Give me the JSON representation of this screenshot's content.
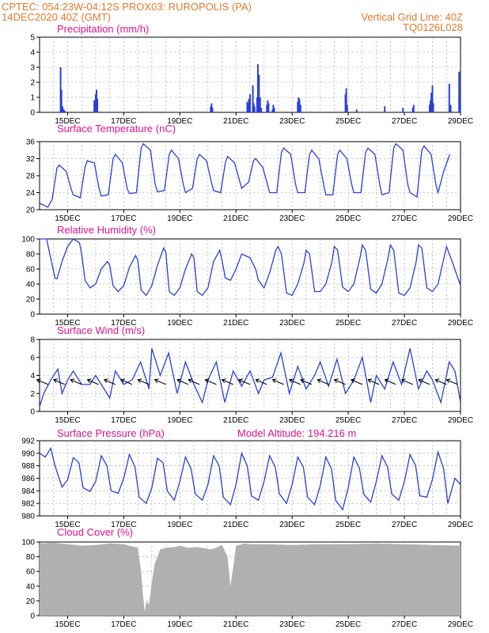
{
  "header": {
    "line1_left": "CPTEC:   054:23W-04:12S   PROX03: RUROPOLIS (PA)",
    "line2_left": "14DEC2020  40Z (GMT)",
    "line2_right": "Vertical Grid Line: 40Z",
    "line3_right": "TQ0126L028"
  },
  "colors": {
    "header": "#e8782a",
    "title": "#e0138c",
    "series": "#2b3fd8",
    "cloud": "#b0b0b0",
    "grid": "#9a9a9a"
  },
  "x_ticks": [
    "15DEC",
    "17DEC",
    "19DEC",
    "21DEC",
    "23DEC",
    "25DEC",
    "27DEC",
    "29DEC"
  ],
  "chart_data": [
    {
      "type": "bar",
      "title": "Precipitation (mm/h)",
      "ylim": [
        0,
        5
      ],
      "yticks": [
        0,
        1,
        2,
        3,
        4,
        5
      ],
      "x_unit": "days since 14DEC2020",
      "x": [
        0.75,
        0.78,
        0.82,
        0.86,
        0.9,
        1.95,
        2.0,
        2.03,
        2.06,
        6.1,
        6.13,
        6.16,
        7.4,
        7.43,
        7.46,
        7.5,
        7.6,
        7.63,
        7.66,
        7.75,
        7.78,
        7.82,
        7.86,
        7.9,
        8.1,
        8.13,
        8.16,
        8.3,
        8.33,
        8.36,
        9.2,
        9.23,
        9.26,
        9.3,
        10.9,
        10.93,
        10.96,
        11.3,
        12.3,
        12.95,
        13.3,
        13.33,
        13.9,
        13.93,
        13.96,
        14.0,
        14.03,
        14.6,
        14.65,
        14.95,
        14.99
      ],
      "values": [
        3.0,
        1.5,
        0.4,
        0.2,
        0.1,
        0.8,
        1.2,
        1.5,
        0.9,
        0.4,
        0.6,
        0.3,
        0.7,
        0.5,
        0.9,
        1.2,
        1.8,
        0.6,
        0.4,
        1.0,
        3.2,
        2.5,
        1.0,
        0.3,
        0.5,
        0.8,
        0.6,
        0.2,
        0.5,
        0.3,
        0.7,
        1.0,
        0.9,
        0.5,
        1.2,
        1.6,
        0.5,
        0.2,
        0.4,
        0.3,
        0.3,
        0.5,
        0.5,
        0.8,
        1.3,
        1.8,
        0.6,
        1.9,
        0.5,
        2.7,
        1.0
      ]
    },
    {
      "type": "line",
      "title": "Surface Temperature (nC)",
      "ylim": [
        20,
        36
      ],
      "yticks": [
        20,
        24,
        28,
        32,
        36
      ],
      "x_unit": "days since 14DEC2020",
      "x": [
        0,
        0.3,
        0.45,
        0.62,
        0.7,
        0.95,
        1.12,
        1.2,
        1.45,
        1.62,
        1.7,
        1.95,
        2.12,
        2.2,
        2.45,
        2.62,
        2.7,
        2.95,
        3.12,
        3.2,
        3.45,
        3.62,
        3.7,
        3.95,
        4.12,
        4.2,
        4.45,
        4.62,
        4.7,
        4.95,
        5.12,
        5.2,
        5.45,
        5.62,
        5.7,
        5.95,
        6.12,
        6.2,
        6.45,
        6.62,
        6.7,
        6.95,
        7.12,
        7.2,
        7.45,
        7.62,
        7.7,
        7.95,
        8.12,
        8.2,
        8.45,
        8.62,
        8.7,
        8.95,
        9.12,
        9.2,
        9.45,
        9.62,
        9.7,
        9.95,
        10.12,
        10.2,
        10.45,
        10.62,
        10.7,
        10.95,
        11.12,
        11.2,
        11.45,
        11.62,
        11.7,
        11.95,
        12.12,
        12.2,
        12.45,
        12.62,
        12.7,
        12.95,
        13.12,
        13.2,
        13.45,
        13.62,
        13.7,
        13.95,
        14.12,
        14.2,
        14.4,
        14.62
      ],
      "values": [
        21.5,
        20.6,
        22.5,
        29.8,
        30.5,
        29.0,
        25.0,
        23.5,
        22.8,
        30.0,
        31.5,
        31.0,
        25.0,
        23.2,
        23.5,
        32.0,
        33.0,
        31.0,
        25.0,
        23.8,
        24.0,
        34.5,
        35.5,
        34.0,
        26.0,
        24.2,
        24.5,
        33.0,
        34.0,
        32.0,
        26.0,
        24.0,
        25.0,
        32.0,
        33.0,
        31.5,
        26.5,
        24.5,
        24.0,
        31.0,
        32.5,
        31.0,
        27.0,
        25.0,
        26.5,
        31.5,
        32.0,
        30.0,
        26.0,
        24.0,
        24.0,
        33.5,
        34.5,
        33.0,
        26.0,
        24.0,
        24.0,
        33.0,
        34.0,
        32.0,
        26.0,
        23.5,
        23.5,
        33.0,
        34.0,
        32.0,
        26.0,
        24.0,
        24.0,
        33.5,
        34.5,
        33.0,
        26.0,
        23.5,
        24.0,
        34.5,
        35.5,
        34.0,
        26.0,
        24.0,
        23.0,
        34.0,
        35.0,
        33.0,
        26.0,
        24.0,
        29.0,
        33.0
      ]
    },
    {
      "type": "line",
      "title": "Relative Humidity (%)",
      "ylim": [
        0,
        100
      ],
      "yticks": [
        0,
        20,
        40,
        60,
        80,
        100
      ],
      "x_unit": "days since 14DEC2020",
      "x": [
        0,
        0.25,
        0.55,
        0.62,
        0.8,
        1.0,
        1.2,
        1.42,
        1.5,
        1.62,
        1.8,
        2.0,
        2.2,
        2.42,
        2.5,
        2.62,
        2.8,
        3.0,
        3.2,
        3.42,
        3.5,
        3.62,
        3.8,
        4.0,
        4.2,
        4.42,
        4.5,
        4.62,
        4.8,
        5.0,
        5.2,
        5.42,
        5.5,
        5.62,
        5.8,
        6.0,
        6.2,
        6.42,
        6.5,
        6.62,
        6.8,
        7.0,
        7.2,
        7.5,
        7.7,
        7.8,
        8.0,
        8.2,
        8.42,
        8.5,
        8.62,
        8.8,
        9.0,
        9.2,
        9.42,
        9.5,
        9.62,
        9.8,
        10.0,
        10.2,
        10.42,
        10.5,
        10.62,
        10.8,
        11.0,
        11.2,
        11.42,
        11.5,
        11.62,
        11.8,
        12.0,
        12.2,
        12.42,
        12.5,
        12.62,
        12.8,
        13.0,
        13.2,
        13.42,
        13.5,
        13.62,
        13.8,
        14.0,
        14.2,
        14.5,
        14.7,
        15.0
      ],
      "values": [
        100,
        100,
        48,
        47,
        70,
        90,
        100,
        95,
        80,
        45,
        35,
        40,
        60,
        70,
        65,
        38,
        30,
        38,
        62,
        78,
        72,
        32,
        25,
        38,
        65,
        88,
        82,
        30,
        25,
        35,
        60,
        80,
        75,
        30,
        25,
        35,
        70,
        85,
        72,
        48,
        45,
        60,
        80,
        75,
        60,
        45,
        35,
        55,
        85,
        90,
        80,
        28,
        25,
        40,
        68,
        85,
        80,
        30,
        30,
        40,
        70,
        90,
        85,
        36,
        30,
        40,
        75,
        92,
        85,
        33,
        28,
        40,
        75,
        92,
        85,
        28,
        25,
        35,
        70,
        92,
        88,
        35,
        30,
        40,
        90,
        70,
        38
      ]
    },
    {
      "type": "line",
      "title": "Surface Wind (m/s)",
      "ylim": [
        0,
        8
      ],
      "yticks": [
        0,
        2,
        4,
        6,
        8
      ],
      "x_unit": "days since 14DEC2020",
      "x": [
        0,
        0.15,
        0.4,
        0.65,
        0.8,
        1.0,
        1.2,
        1.5,
        1.8,
        2.0,
        2.3,
        2.5,
        2.7,
        3.0,
        3.3,
        3.6,
        3.9,
        4.0,
        4.3,
        4.6,
        4.9,
        5.2,
        5.5,
        5.8,
        6.0,
        6.3,
        6.6,
        6.9,
        7.2,
        7.5,
        7.8,
        8.0,
        8.3,
        8.6,
        8.9,
        9.2,
        9.5,
        9.8,
        10.0,
        10.3,
        10.6,
        10.9,
        11.2,
        11.5,
        11.8,
        12.0,
        12.3,
        12.6,
        12.9,
        13.2,
        13.5,
        13.8,
        14.0,
        14.3,
        14.6,
        14.8,
        15.0
      ],
      "values": [
        0.5,
        2.0,
        3.5,
        4.7,
        2.0,
        3.5,
        4.5,
        3.0,
        3.0,
        4.0,
        2.5,
        1.5,
        4.5,
        3.0,
        3.5,
        5.5,
        2.5,
        7.0,
        4.0,
        6.5,
        2.0,
        5.5,
        3.0,
        1.0,
        3.5,
        5.5,
        1.0,
        4.5,
        2.8,
        4.5,
        2.0,
        3.5,
        3.8,
        6.5,
        2.0,
        5.0,
        2.5,
        4.0,
        5.5,
        2.8,
        5.8,
        2.0,
        3.5,
        6.0,
        1.0,
        4.0,
        2.5,
        5.5,
        3.0,
        7.0,
        2.5,
        4.5,
        3.5,
        1.0,
        5.5,
        4.5,
        1.0
      ]
    },
    {
      "type": "line",
      "title": "Surface Pressure (hPa)",
      "subtitle": "Model Altitude: 194.216  m",
      "ylim": [
        980,
        992
      ],
      "yticks": [
        980,
        982,
        984,
        986,
        988,
        990,
        992
      ],
      "x_unit": "days since 14DEC2020",
      "x": [
        0,
        0.2,
        0.4,
        0.55,
        0.8,
        1.0,
        1.2,
        1.4,
        1.55,
        1.8,
        2.0,
        2.2,
        2.4,
        2.55,
        2.8,
        3.0,
        3.2,
        3.4,
        3.55,
        3.8,
        4.0,
        4.2,
        4.4,
        4.55,
        4.8,
        5.0,
        5.2,
        5.4,
        5.55,
        5.8,
        6.0,
        6.2,
        6.4,
        6.55,
        6.8,
        7.0,
        7.2,
        7.4,
        7.55,
        7.8,
        8.0,
        8.2,
        8.4,
        8.55,
        8.8,
        9.0,
        9.2,
        9.4,
        9.55,
        9.8,
        10.0,
        10.2,
        10.4,
        10.55,
        10.8,
        11.0,
        11.2,
        11.4,
        11.55,
        11.8,
        12.0,
        12.2,
        12.4,
        12.55,
        12.8,
        13.0,
        13.2,
        13.4,
        13.55,
        13.8,
        14.0,
        14.2,
        14.4,
        14.55,
        14.8,
        15.0
      ],
      "values": [
        990.0,
        989.4,
        990.8,
        988.0,
        984.6,
        985.8,
        989.3,
        988.5,
        984.5,
        983.9,
        985.5,
        989.6,
        988.0,
        984.0,
        983.6,
        986.0,
        989.8,
        987.8,
        983.0,
        982.0,
        984.5,
        989.2,
        988.5,
        984.0,
        982.5,
        985.5,
        989.4,
        987.5,
        983.5,
        982.5,
        985.0,
        989.6,
        988.0,
        983.0,
        981.8,
        985.0,
        990.0,
        988.0,
        983.2,
        982.5,
        985.5,
        989.6,
        987.8,
        983.5,
        982.0,
        985.0,
        989.4,
        987.8,
        983.0,
        981.8,
        984.8,
        989.4,
        987.5,
        982.5,
        981.0,
        984.5,
        989.4,
        987.6,
        983.5,
        982.2,
        985.5,
        989.6,
        987.8,
        983.5,
        982.5,
        985.5,
        989.8,
        988.0,
        983.2,
        983.0,
        985.8,
        990.2,
        987.5,
        982.0,
        986.0,
        985.0
      ]
    },
    {
      "type": "area",
      "title": "Cloud Cover (%)",
      "ylim": [
        0,
        100
      ],
      "yticks": [
        0,
        20,
        40,
        60,
        80,
        100
      ],
      "x_unit": "days since 14DEC2020",
      "x": [
        0,
        0.5,
        1.0,
        1.5,
        2.0,
        2.5,
        3.0,
        3.5,
        3.62,
        3.68,
        3.75,
        3.8,
        3.9,
        4.0,
        4.1,
        4.3,
        4.5,
        4.8,
        5.0,
        5.3,
        5.6,
        5.8,
        6.1,
        6.3,
        6.5,
        6.7,
        6.8,
        6.9,
        7.0,
        7.1,
        7.3,
        7.5,
        8.0,
        9.0,
        10.0,
        11.0,
        12.0,
        13.0,
        14.0,
        15.0
      ],
      "values": [
        98,
        99,
        97,
        95,
        96,
        98,
        97,
        92,
        60,
        30,
        5,
        20,
        15,
        45,
        70,
        90,
        92,
        93,
        95,
        92,
        93,
        92,
        90,
        92,
        96,
        80,
        40,
        65,
        95,
        96,
        98,
        97,
        97,
        96,
        97,
        97,
        98,
        97,
        96,
        95
      ]
    }
  ]
}
